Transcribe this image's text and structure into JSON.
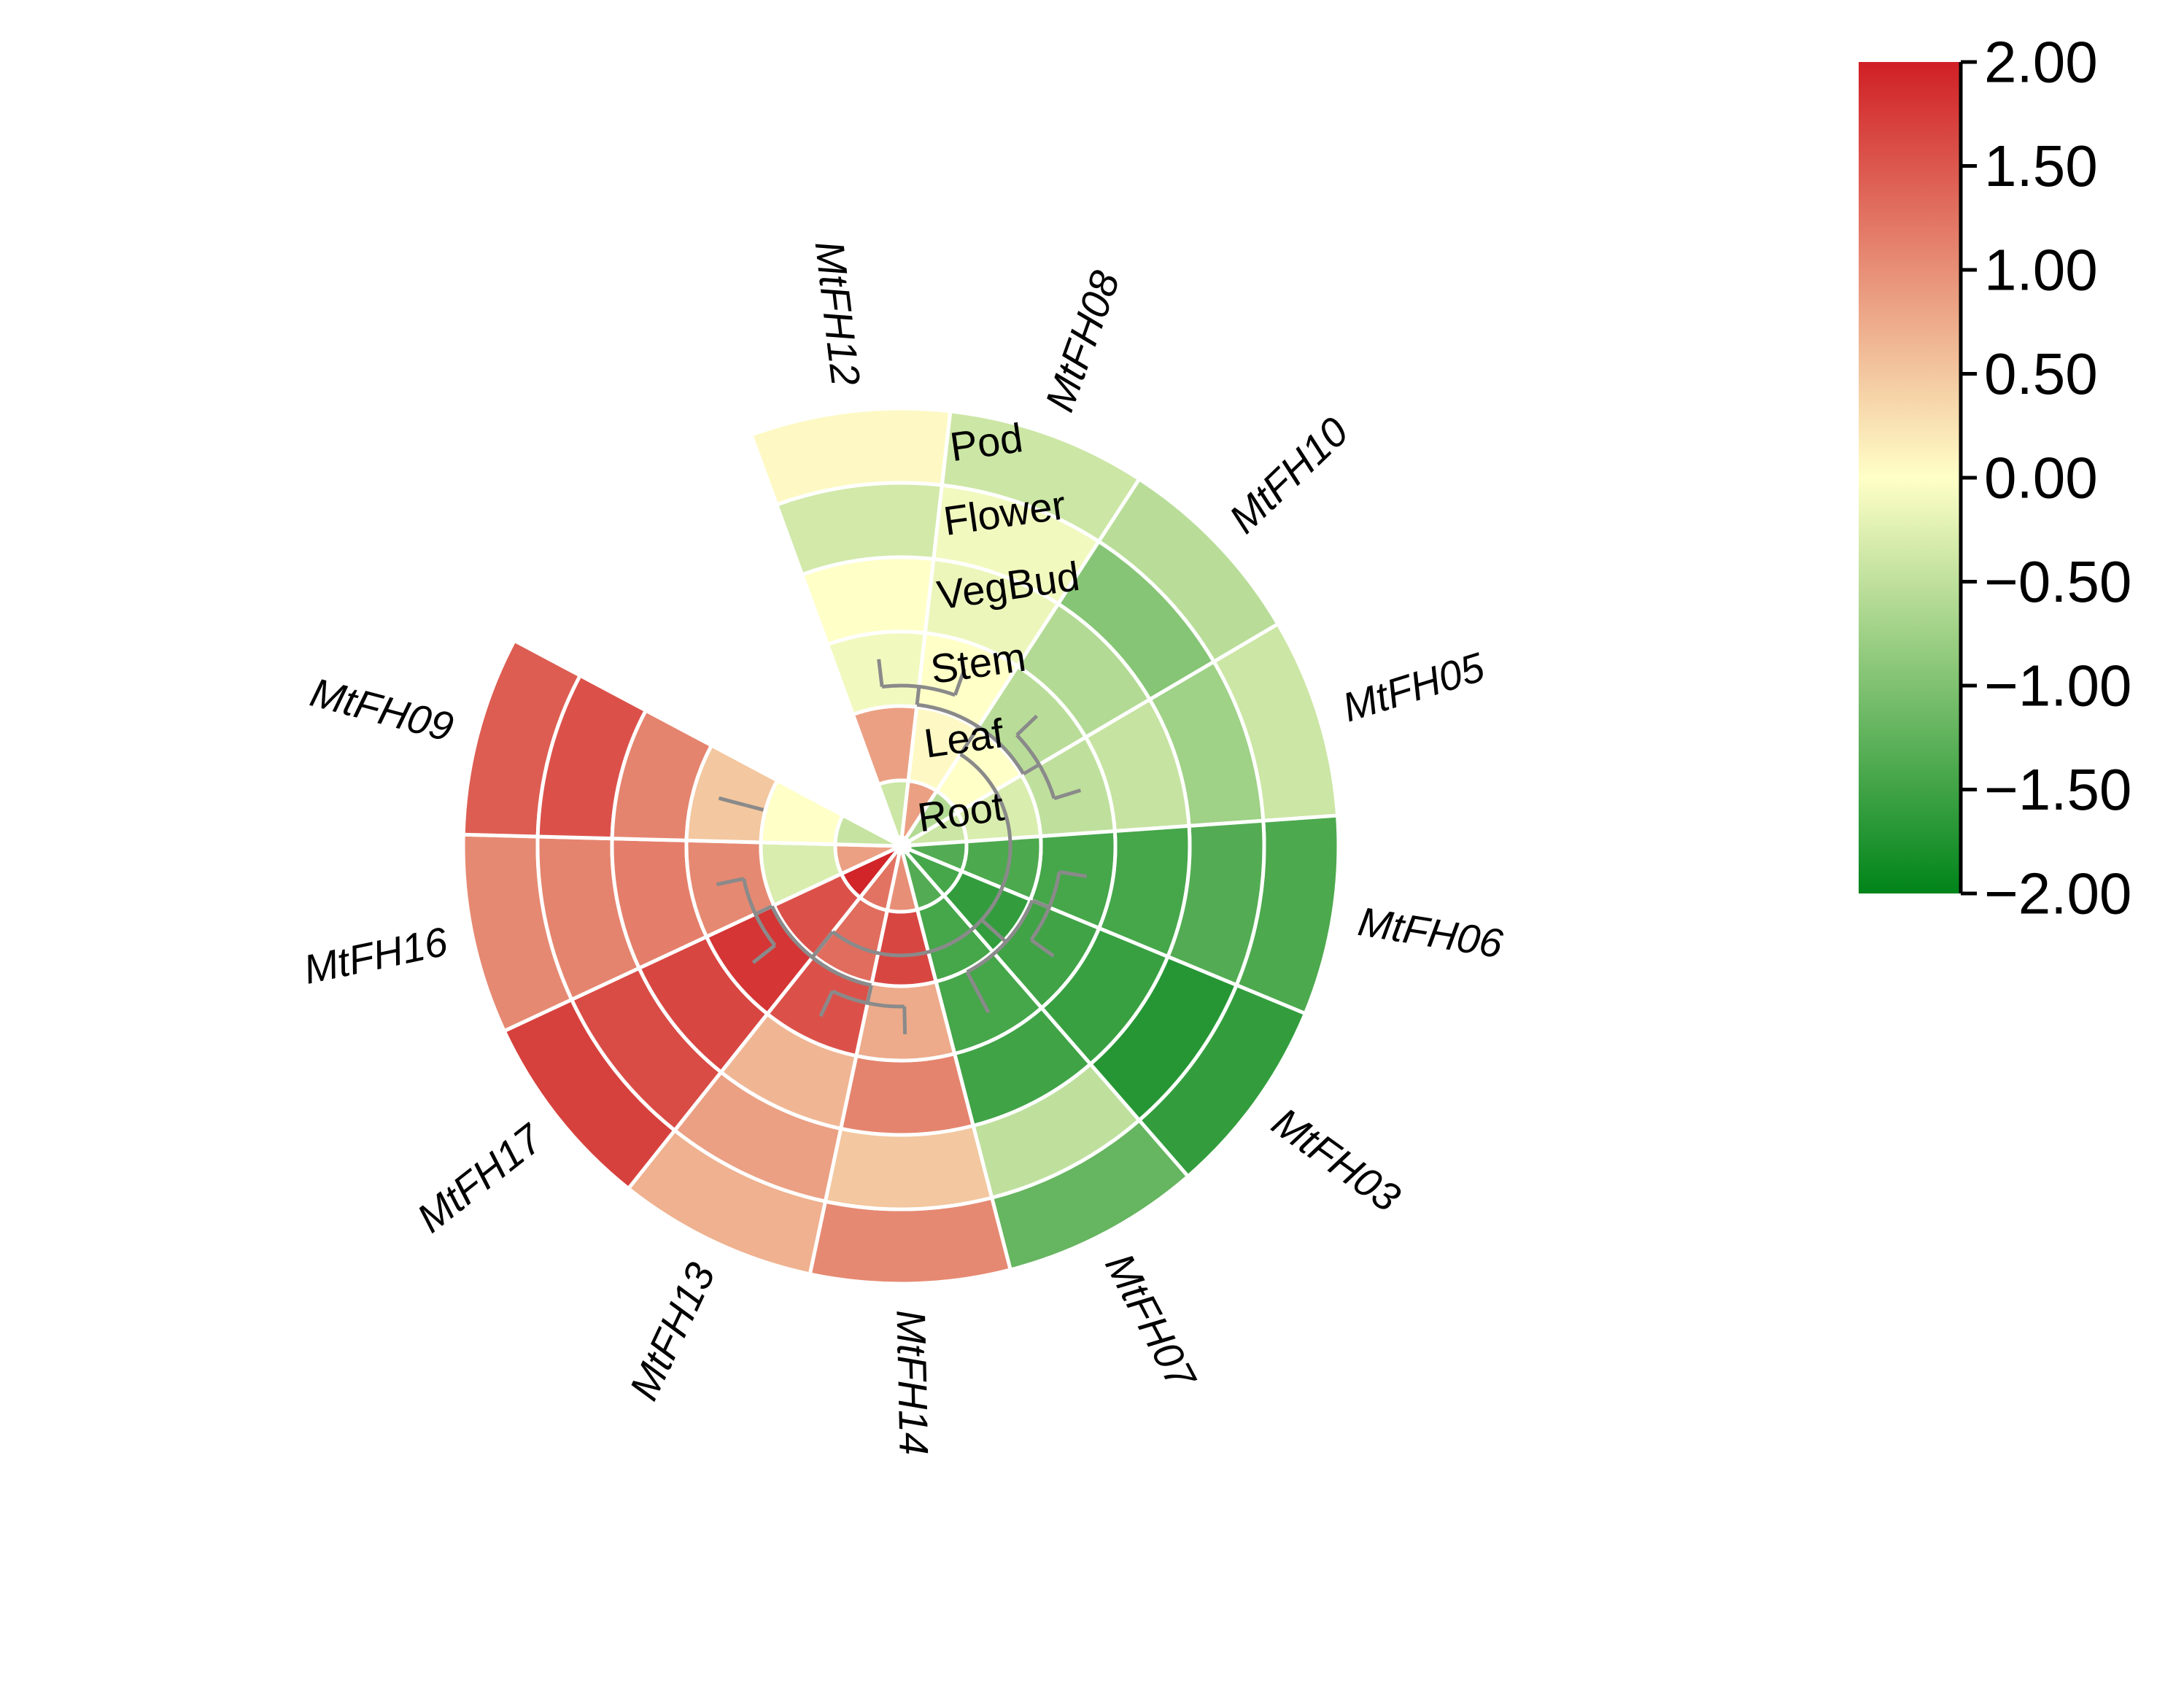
{
  "chart_data": {
    "type": "heatmap",
    "layout": "circular",
    "genes": [
      "MtFH12",
      "MtFH08",
      "MtFH10",
      "MtFH05",
      "MtFH06",
      "MtFH03",
      "MtFH07",
      "MtFH14",
      "MtFH13",
      "MtFH17",
      "MtFH16",
      "MtFH09"
    ],
    "tissues_outer_to_inner": [
      "Pod",
      "Flower",
      "VegBud",
      "Stem",
      "Leaf",
      "Root"
    ],
    "values": {
      "MtFH12": {
        "Pod": 0.05,
        "Flower": -0.35,
        "VegBud": 0.0,
        "Stem": -0.1,
        "Leaf": 0.85,
        "Root": -0.4
      },
      "MtFH08": {
        "Pod": -0.4,
        "Flower": -0.1,
        "VegBud": -0.15,
        "Stem": 0.0,
        "Leaf": 0.05,
        "Root": 0.85
      },
      "MtFH10": {
        "Pod": -0.55,
        "Flower": -0.95,
        "VegBud": -0.6,
        "Stem": -0.55,
        "Leaf": 0.0,
        "Root": -0.6
      },
      "MtFH05": {
        "Pod": -0.4,
        "Flower": -0.75,
        "VegBud": -0.45,
        "Stem": -0.5,
        "Leaf": -0.3,
        "Root": -0.4
      },
      "MtFH06": {
        "Pod": -1.4,
        "Flower": -1.35,
        "VegBud": -1.45,
        "Stem": -1.45,
        "Leaf": -1.4,
        "Root": -1.35
      },
      "MtFH03": {
        "Pod": -1.6,
        "Flower": -1.7,
        "VegBud": -1.55,
        "Stem": -1.5,
        "Leaf": -1.6,
        "Root": -1.45
      },
      "MtFH07": {
        "Pod": -1.2,
        "Flower": -0.5,
        "VegBud": -1.5,
        "Stem": -1.45,
        "Leaf": -1.45,
        "Root": -1.35
      },
      "MtFH14": {
        "Pod": 1.05,
        "Flower": 0.5,
        "VegBud": 1.1,
        "Stem": 0.75,
        "Leaf": 1.65,
        "Root": 1.0
      },
      "MtFH13": {
        "Pod": 0.7,
        "Flower": 0.85,
        "VegBud": 0.65,
        "Stem": 1.55,
        "Leaf": 1.3,
        "Root": 1.25
      },
      "MtFH17": {
        "Pod": 1.7,
        "Flower": 1.6,
        "VegBud": 1.65,
        "Stem": 1.8,
        "Leaf": 1.55,
        "Root": 1.95
      },
      "MtFH16": {
        "Pod": 1.05,
        "Flower": 1.1,
        "VegBud": 1.15,
        "Stem": 1.05,
        "Leaf": -0.3,
        "Root": 0.85
      },
      "MtFH09": {
        "Pod": 1.45,
        "Flower": 1.55,
        "VegBud": 1.1,
        "Stem": 0.5,
        "Leaf": 0.0,
        "Root": -0.45
      }
    },
    "colorbar": {
      "range": [
        -2.0,
        2.0
      ],
      "ticks": [
        "2.00",
        "1.50",
        "1.00",
        "0.50",
        "0.00",
        "−0.50",
        "−1.00",
        "−1.50",
        "−2.00"
      ],
      "colors": {
        "low": "#00841a",
        "mid": "#ffffc8",
        "high": "#d01f25"
      }
    }
  }
}
